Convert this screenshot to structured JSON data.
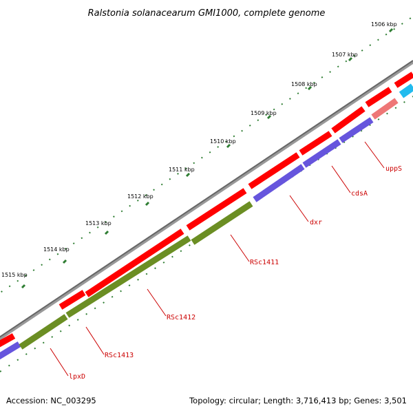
{
  "title": "Ralstonia solanacearum GMI1000, complete genome",
  "accession": "Accession: NC_003295",
  "topology": "Topology: circular; Length: 3,716,413 bp; Genes: 3,501",
  "ticks": [
    "1506 kbp",
    "1507 kbp",
    "1508 kbp",
    "1509 kbp",
    "1510 kbp",
    "1511 kbp",
    "1512 kbp",
    "1513 kbp",
    "1514 kbp",
    "1515 kbp"
  ],
  "genes": [
    "uppS",
    "cdsA",
    "dxr",
    "RSc1411",
    "RSc1412",
    "RSc1413",
    "lpxD"
  ],
  "colors": {
    "backbone": "#777777",
    "forward_cds": "#ff0000",
    "reverse_cds_purple": "#6655dd",
    "reverse_cds_olive": "#6b8e23",
    "rna_cyan": "#22bbee",
    "pseudo_pink": "#ee7777",
    "tick_green": "#226622",
    "label_red": "#cc0000"
  }
}
